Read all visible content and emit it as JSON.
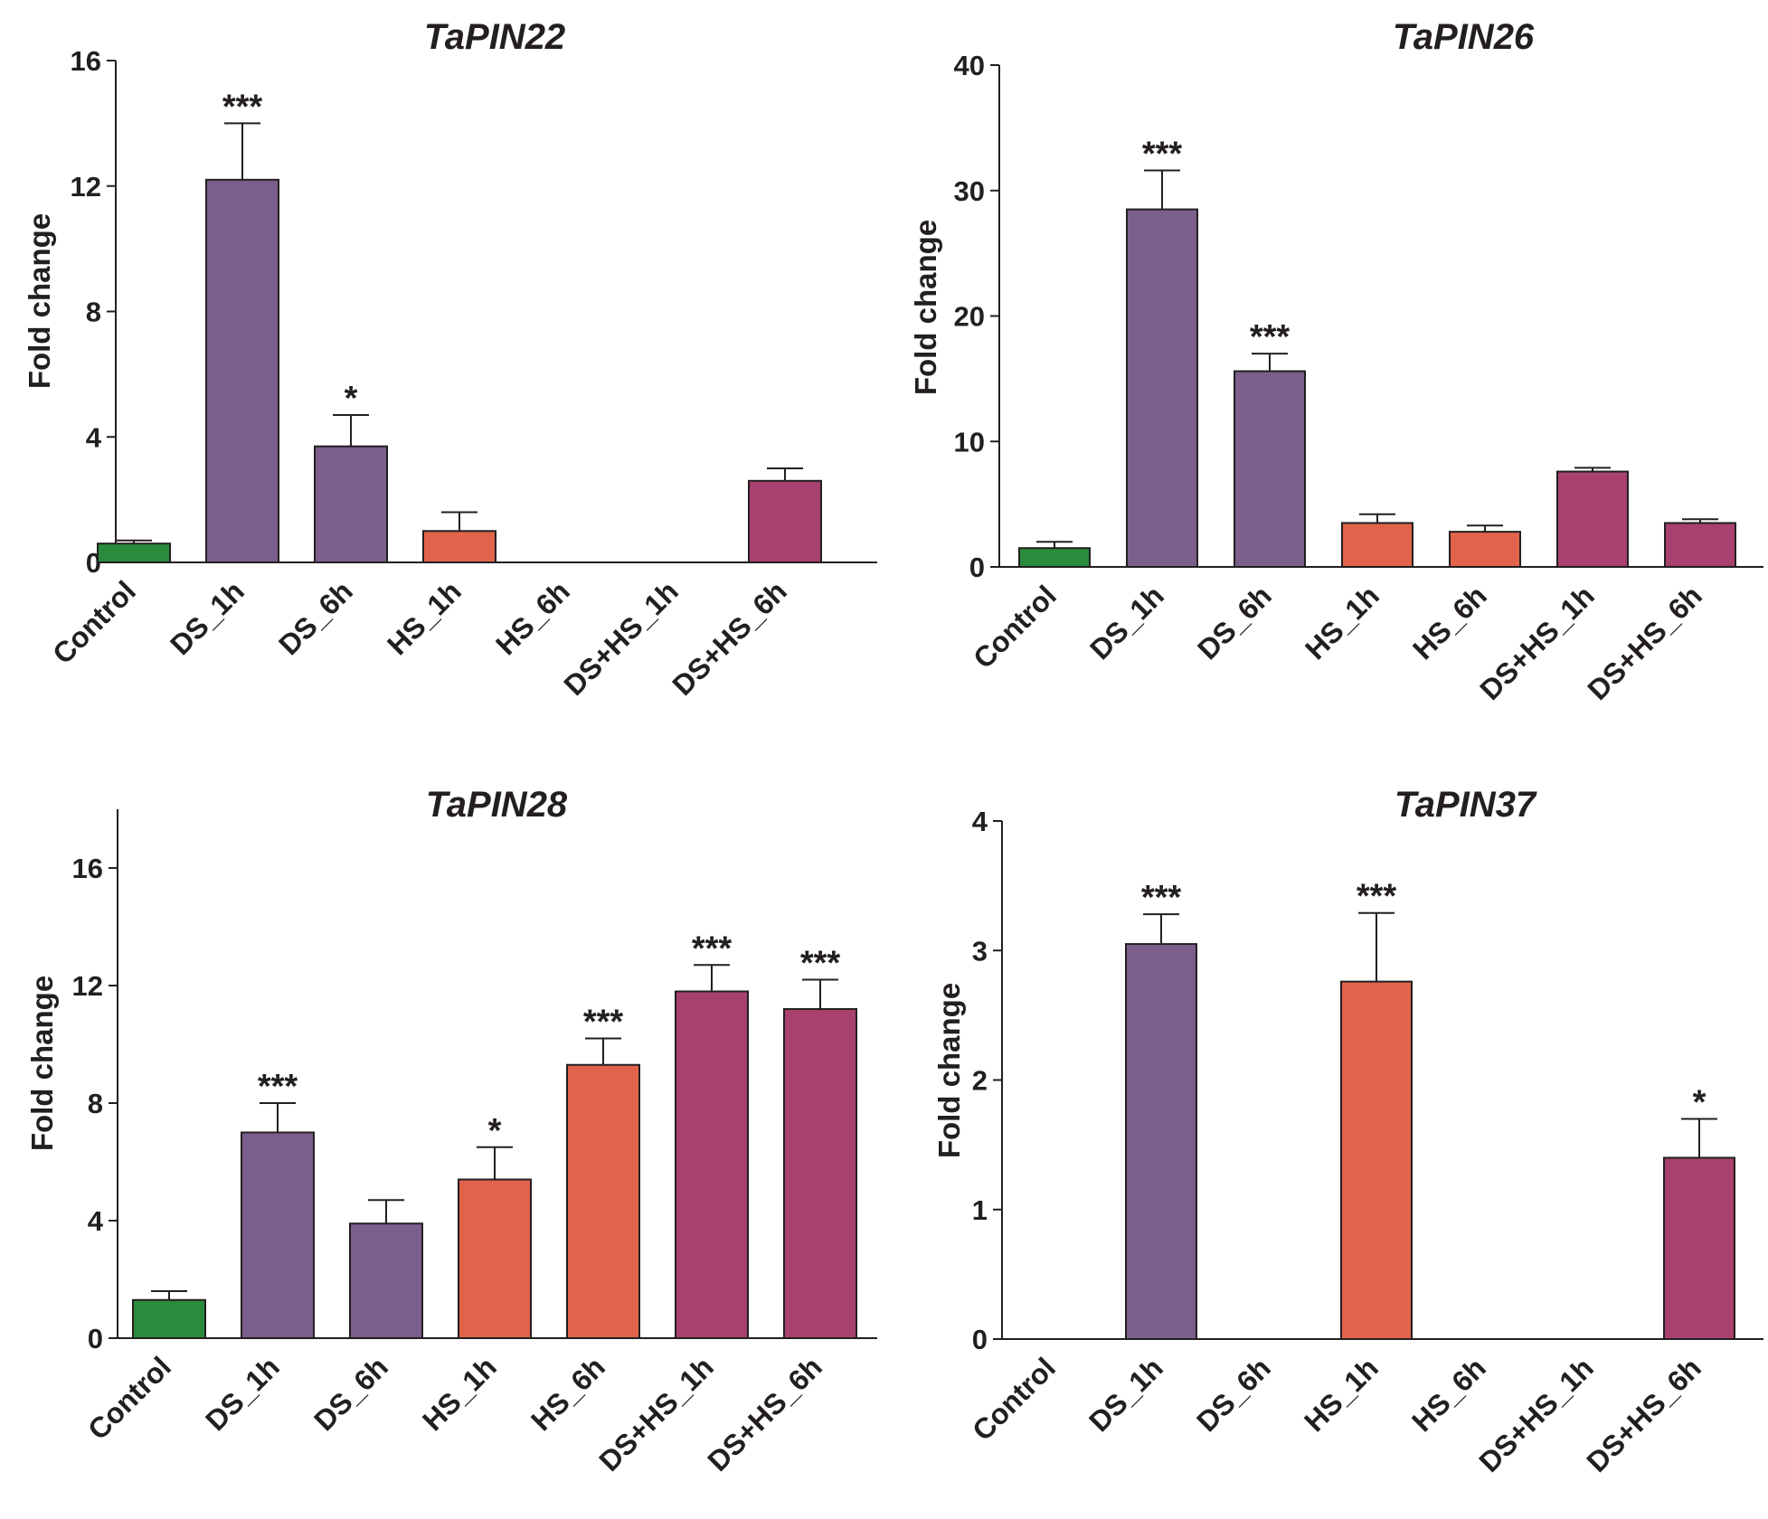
{
  "colors": {
    "control": "#2a8b3c",
    "ds": "#7b5e8c",
    "hs": "#e2634c",
    "dshs": "#a8416e",
    "axis": "#231f20"
  },
  "chart_data": [
    {
      "type": "bar",
      "title": "TaPIN22",
      "ylabel": "Fold change",
      "xlabel": "",
      "categories": [
        "Control",
        "DS_1h",
        "DS_6h",
        "HS_1h",
        "HS_6h",
        "DS+HS_1h",
        "DS+HS_6h"
      ],
      "groups": [
        "control",
        "ds",
        "ds",
        "hs",
        "hs",
        "dshs",
        "dshs"
      ],
      "values": [
        0.6,
        12.2,
        3.7,
        1.0,
        null,
        null,
        2.6
      ],
      "errors": [
        0.1,
        1.8,
        1.0,
        0.6,
        null,
        null,
        0.4
      ],
      "significance": [
        "",
        "***",
        "*",
        "",
        "",
        "",
        ""
      ],
      "ylim": [
        0,
        16
      ],
      "yticks": [
        0,
        4,
        8,
        12,
        16
      ]
    },
    {
      "type": "bar",
      "title": "TaPIN26",
      "ylabel": "Fold change",
      "xlabel": "",
      "categories": [
        "Control",
        "DS_1h",
        "DS_6h",
        "HS_1h",
        "HS_6h",
        "DS+HS_1h",
        "DS+HS_6h"
      ],
      "groups": [
        "control",
        "ds",
        "ds",
        "hs",
        "hs",
        "dshs",
        "dshs"
      ],
      "values": [
        1.5,
        28.5,
        15.6,
        3.5,
        2.8,
        7.6,
        3.5
      ],
      "errors": [
        0.5,
        3.1,
        1.4,
        0.7,
        0.5,
        0.3,
        0.3
      ],
      "significance": [
        "",
        "***",
        "***",
        "",
        "",
        "",
        ""
      ],
      "ylim": [
        0,
        40
      ],
      "yticks": [
        0,
        10,
        20,
        30,
        40
      ]
    },
    {
      "type": "bar",
      "title": "TaPIN28",
      "ylabel": "Fold change",
      "xlabel": "",
      "categories": [
        "Control",
        "DS_1h",
        "DS_6h",
        "HS_1h",
        "HS_6h",
        "DS+HS_1h",
        "DS+HS_6h"
      ],
      "groups": [
        "control",
        "ds",
        "ds",
        "hs",
        "hs",
        "dshs",
        "dshs"
      ],
      "values": [
        1.3,
        7.0,
        3.9,
        5.4,
        9.3,
        11.8,
        11.2
      ],
      "errors": [
        0.3,
        1.0,
        0.8,
        1.1,
        0.9,
        0.9,
        1.0
      ],
      "significance": [
        "",
        "***",
        "",
        "*",
        "***",
        "***",
        "***"
      ],
      "ylim": [
        0,
        18
      ],
      "yticks": [
        0,
        4,
        8,
        12,
        16
      ]
    },
    {
      "type": "bar",
      "title": "TaPIN37",
      "ylabel": "Fold change",
      "xlabel": "",
      "categories": [
        "Control",
        "DS_1h",
        "DS_6h",
        "HS_1h",
        "HS_6h",
        "DS+HS_1h",
        "DS+HS_6h"
      ],
      "groups": [
        "control",
        "ds",
        "ds",
        "hs",
        "hs",
        "dshs",
        "dshs"
      ],
      "values": [
        null,
        3.05,
        null,
        2.76,
        null,
        null,
        1.4
      ],
      "errors": [
        null,
        0.23,
        null,
        0.53,
        null,
        null,
        0.3
      ],
      "significance": [
        "",
        "***",
        "",
        "***",
        "",
        "",
        "*"
      ],
      "ylim": [
        0,
        4
      ],
      "yticks": [
        0,
        1,
        2,
        3,
        4
      ]
    }
  ]
}
